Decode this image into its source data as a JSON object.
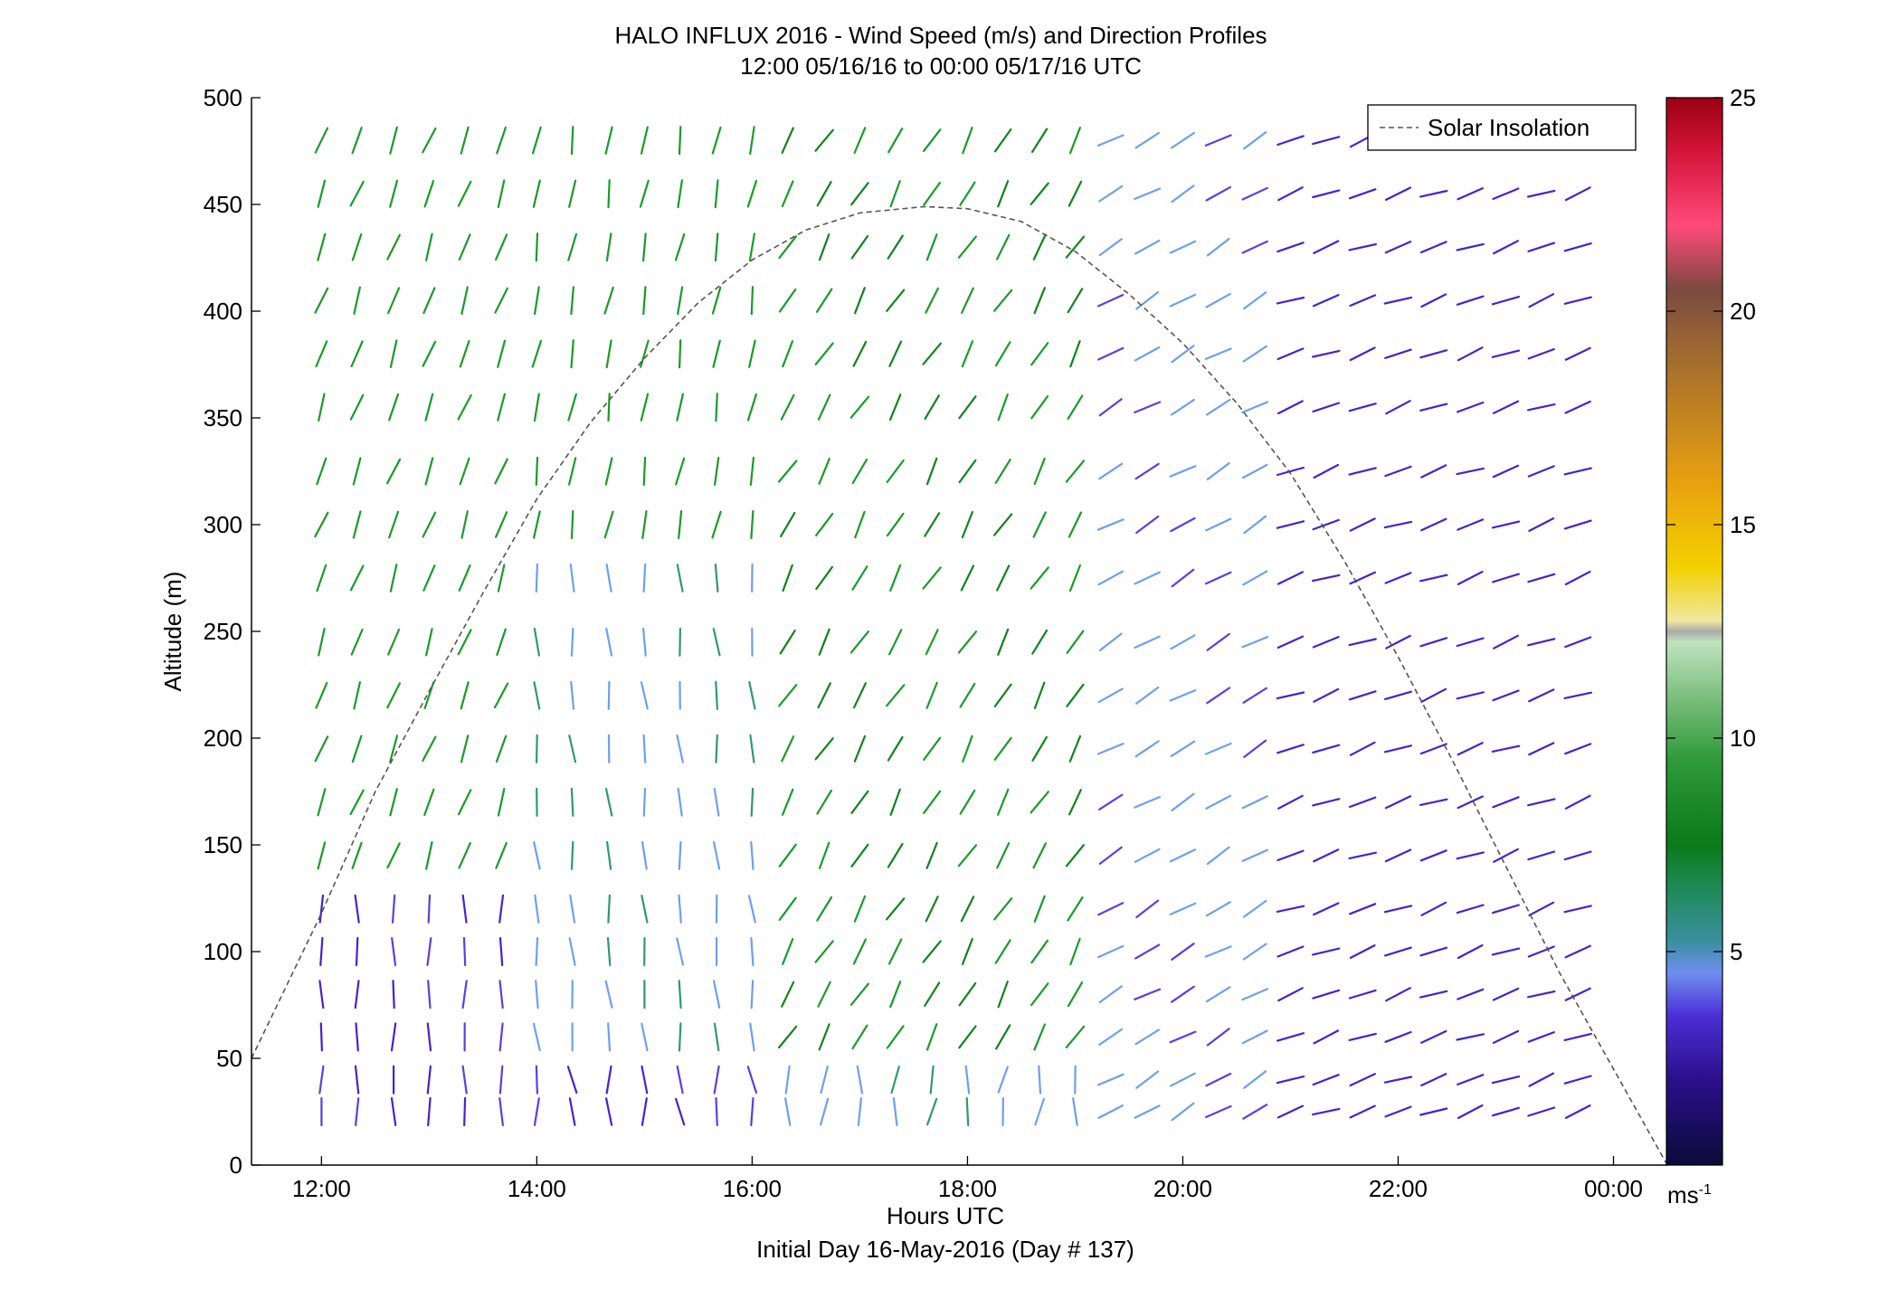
{
  "chart_data": {
    "type": "wind_barb_profile",
    "title": "HALO INFLUX 2016 - Wind Speed (m/s) and Direction Profiles",
    "subtitle": "12:00 05/16/16 to 00:00 05/17/16  UTC",
    "xlabel": "Hours UTC",
    "xlabel2": "Initial Day 16-May-2016 (Day # 137)",
    "ylabel": "Altitude (m)",
    "xlim": [
      11.35,
      24.5
    ],
    "ylim": [
      0,
      500
    ],
    "x_ticks": [
      {
        "value": 12,
        "label": "12:00"
      },
      {
        "value": 14,
        "label": "14:00"
      },
      {
        "value": 16,
        "label": "16:00"
      },
      {
        "value": 18,
        "label": "18:00"
      },
      {
        "value": 20,
        "label": "20:00"
      },
      {
        "value": 22,
        "label": "22:00"
      },
      {
        "value": 24,
        "label": "00:00"
      }
    ],
    "y_ticks": [
      0,
      50,
      100,
      150,
      200,
      250,
      300,
      350,
      400,
      450,
      500
    ],
    "legend": {
      "label": "Solar Insolation",
      "placement": "top-right",
      "style": "dashed"
    },
    "colorbar": {
      "min": 0,
      "max": 25,
      "ticks": [
        5,
        10,
        15,
        20,
        25
      ],
      "unit": "ms",
      "unit_exponent": "-1"
    },
    "solar_insolation_curve": [
      {
        "x": 11.35,
        "y": 50
      },
      {
        "x": 12.0,
        "y": 118
      },
      {
        "x": 12.5,
        "y": 175
      },
      {
        "x": 13.0,
        "y": 222
      },
      {
        "x": 13.5,
        "y": 268
      },
      {
        "x": 14.0,
        "y": 312
      },
      {
        "x": 14.5,
        "y": 348
      },
      {
        "x": 15.0,
        "y": 378
      },
      {
        "x": 15.5,
        "y": 404
      },
      {
        "x": 16.0,
        "y": 424
      },
      {
        "x": 16.5,
        "y": 438
      },
      {
        "x": 17.0,
        "y": 446
      },
      {
        "x": 17.6,
        "y": 449
      },
      {
        "x": 18.0,
        "y": 448
      },
      {
        "x": 18.5,
        "y": 442
      },
      {
        "x": 19.0,
        "y": 428
      },
      {
        "x": 19.5,
        "y": 408
      },
      {
        "x": 20.0,
        "y": 385
      },
      {
        "x": 20.5,
        "y": 357
      },
      {
        "x": 21.0,
        "y": 324
      },
      {
        "x": 21.5,
        "y": 283
      },
      {
        "x": 22.0,
        "y": 238
      },
      {
        "x": 22.5,
        "y": 190
      },
      {
        "x": 23.0,
        "y": 140
      },
      {
        "x": 23.5,
        "y": 90
      },
      {
        "x": 24.0,
        "y": 45
      },
      {
        "x": 24.5,
        "y": 0
      }
    ],
    "profile_times": [
      12.0,
      12.33,
      12.67,
      13.0,
      13.33,
      13.67,
      14.0,
      14.33,
      14.67,
      15.0,
      15.33,
      15.67,
      16.0,
      16.33,
      16.67,
      17.0,
      17.33,
      17.67,
      18.0,
      18.33,
      18.67,
      19.0,
      19.33,
      19.67,
      20.0,
      20.33,
      20.67,
      21.0,
      21.33,
      21.67,
      22.0,
      22.33,
      22.67,
      23.0,
      23.33,
      23.67
    ],
    "profile_altitudes": [
      25,
      40,
      60,
      80,
      100,
      120,
      145,
      170,
      195,
      220,
      245,
      275,
      300,
      325,
      355,
      380,
      405,
      430,
      455,
      480
    ],
    "wind_regimes": [
      {
        "time_start": 12.0,
        "time_end": 14.0,
        "alt_start": 0,
        "alt_end": 130,
        "speed_ms": 3.5,
        "direction_deg": 180,
        "variability": 8
      },
      {
        "time_start": 12.0,
        "time_end": 14.0,
        "alt_start": 130,
        "alt_end": 500,
        "speed_ms": 8.0,
        "direction_deg": 200,
        "variability": 8
      },
      {
        "time_start": 14.0,
        "time_end": 16.3,
        "alt_start": 0,
        "alt_end": 60,
        "speed_ms": 3.5,
        "direction_deg": 175,
        "variability": 15
      },
      {
        "time_start": 14.0,
        "time_end": 16.3,
        "alt_start": 60,
        "alt_end": 280,
        "speed_ms": 5.0,
        "direction_deg": 175,
        "variability": 8
      },
      {
        "time_start": 14.0,
        "time_end": 16.3,
        "alt_start": 280,
        "alt_end": 500,
        "speed_ms": 8.0,
        "direction_deg": 190,
        "variability": 8
      },
      {
        "time_start": 16.3,
        "time_end": 19.2,
        "alt_start": 0,
        "alt_end": 60,
        "speed_ms": 5.0,
        "direction_deg": 185,
        "variability": 15
      },
      {
        "time_start": 16.3,
        "time_end": 19.2,
        "alt_start": 60,
        "alt_end": 500,
        "speed_ms": 7.5,
        "direction_deg": 210,
        "variability": 10
      },
      {
        "time_start": 19.2,
        "time_end": 20.7,
        "alt_start": 0,
        "alt_end": 500,
        "speed_ms": 4.5,
        "direction_deg": 240,
        "variability": 8
      },
      {
        "time_start": 20.7,
        "time_end": 24.0,
        "alt_start": 0,
        "alt_end": 500,
        "speed_ms": 3.0,
        "direction_deg": 250,
        "variability": 8
      }
    ]
  }
}
